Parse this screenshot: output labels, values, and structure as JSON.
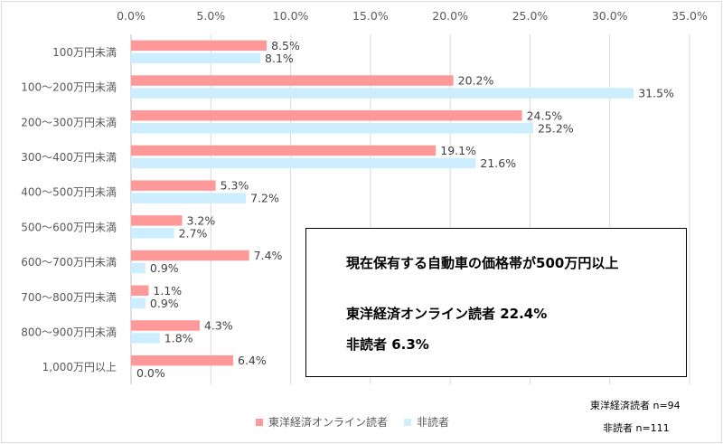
{
  "chart_data": {
    "type": "bar",
    "orientation": "horizontal",
    "title": "",
    "xlabel": "",
    "ylabel": "",
    "xlim": [
      0,
      35
    ],
    "x_ticks": [
      "0.0%",
      "5.0%",
      "10.0%",
      "15.0%",
      "20.0%",
      "25.0%",
      "30.0%",
      "35.0%"
    ],
    "x_tick_values": [
      0,
      5,
      10,
      15,
      20,
      25,
      30,
      35
    ],
    "x_axis_position": "top",
    "grid": true,
    "legend_position": "bottom",
    "categories": [
      "100万円未満",
      "100～200万円未満",
      "200～300万円未満",
      "300～400万円未満",
      "400～500万円未満",
      "500～600万円未満",
      "600～700万円未満",
      "700～800万円未満",
      "800～900万円未満",
      "1,000万円以上"
    ],
    "series": [
      {
        "name": "東洋経済オンライン読者",
        "color": "#ff9999",
        "values": [
          8.5,
          20.2,
          24.5,
          19.1,
          5.3,
          3.2,
          7.4,
          1.1,
          4.3,
          6.4
        ],
        "labels": [
          "8.5%",
          "20.2%",
          "24.5%",
          "19.1%",
          "5.3%",
          "3.2%",
          "7.4%",
          "1.1%",
          "4.3%",
          "6.4%"
        ]
      },
      {
        "name": "非読者",
        "color": "#cceeff",
        "values": [
          8.1,
          31.5,
          25.2,
          21.6,
          7.2,
          2.7,
          0.9,
          0.9,
          1.8,
          0.0
        ],
        "labels": [
          "8.1%",
          "31.5%",
          "25.2%",
          "21.6%",
          "7.2%",
          "2.7%",
          "0.9%",
          "0.9%",
          "1.8%",
          "0.0%"
        ]
      }
    ]
  },
  "annotation": {
    "headline": "現在保有する自動車の価格帯が500万円以上",
    "line1": "東洋経済オンライン読者 22.4%",
    "line2": "非読者 6.3%"
  },
  "notes": {
    "readers_n": "東洋経済読者 n=94",
    "non_readers_n": "非読者 n=111"
  }
}
